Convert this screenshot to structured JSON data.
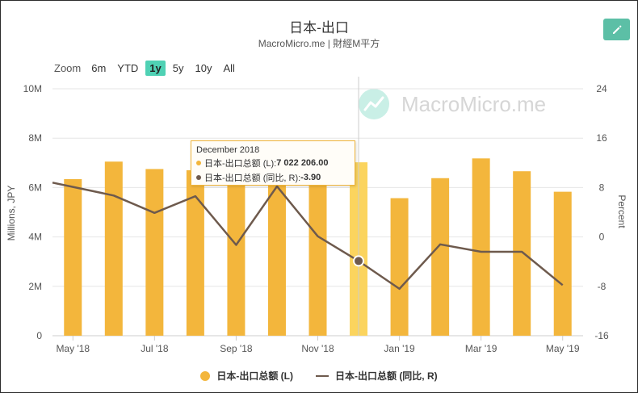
{
  "header": {
    "title": "日本-出口",
    "subtitle": "MacroMicro.me | 財經M平方"
  },
  "toolbar": {
    "zoom_label": "Zoom",
    "edit_icon": "pencil-icon",
    "ranges": [
      {
        "label": "6m",
        "active": false
      },
      {
        "label": "YTD",
        "active": false
      },
      {
        "label": "1y",
        "active": true
      },
      {
        "label": "5y",
        "active": false
      },
      {
        "label": "10y",
        "active": false
      },
      {
        "label": "All",
        "active": false
      }
    ]
  },
  "watermark": "MacroMicro.me",
  "tooltip": {
    "date": "December 2018",
    "left_label": "日本-出口总额 (L): ",
    "left_value": "7 022 206.00",
    "right_label": "日本-出口总额 (同比, R): ",
    "right_value": "-3.90"
  },
  "legend": {
    "bar_label": "日本-出口总额 (L)",
    "line_label": "日本-出口总额 (同比, R)"
  },
  "colors": {
    "bar": "#f3b63c",
    "bar_highlight": "#fbd45e",
    "line": "#6e5a4d",
    "accent": "#5cbfa6"
  },
  "chart_data": {
    "type": "bar",
    "categories": [
      "2018-05",
      "2018-06",
      "2018-07",
      "2018-08",
      "2018-09",
      "2018-10",
      "2018-11",
      "2018-12",
      "2019-01",
      "2019-02",
      "2019-03",
      "2019-04",
      "2019-05"
    ],
    "x_tick_labels": [
      "May '18",
      "Jul '18",
      "Sep '18",
      "Nov '18",
      "Jan '19",
      "Mar '19",
      "May '19"
    ],
    "highlight_index": 7,
    "left_axis": {
      "label": "Millions, JPY",
      "ylim": [
        0,
        10000000
      ],
      "ticks": [
        0,
        2000000,
        4000000,
        6000000,
        8000000,
        10000000
      ],
      "tick_labels": [
        "0",
        "2M",
        "4M",
        "6M",
        "8M",
        "10M"
      ]
    },
    "right_axis": {
      "label": "Percent",
      "ylim": [
        -16,
        24
      ],
      "ticks": [
        -16,
        -8,
        0,
        8,
        16,
        24
      ],
      "tick_labels": [
        "-16",
        "-8",
        "0",
        "8",
        "16",
        "24"
      ]
    },
    "series": [
      {
        "name": "日本-出口总额 (L)",
        "type": "bar",
        "axis": "left",
        "values": [
          6340000,
          7050000,
          6750000,
          6700000,
          6380000,
          7100000,
          6600000,
          7022206,
          5570000,
          6380000,
          7180000,
          6660000,
          5830000
        ]
      },
      {
        "name": "日本-出口总额 (同比, R)",
        "type": "line",
        "axis": "right",
        "values": [
          8.1,
          6.7,
          3.9,
          6.6,
          -1.3,
          8.2,
          0.1,
          -3.9,
          -8.4,
          -1.2,
          -2.4,
          -2.4,
          -7.8
        ]
      }
    ],
    "grid": true,
    "legend_position": "bottom-center"
  }
}
